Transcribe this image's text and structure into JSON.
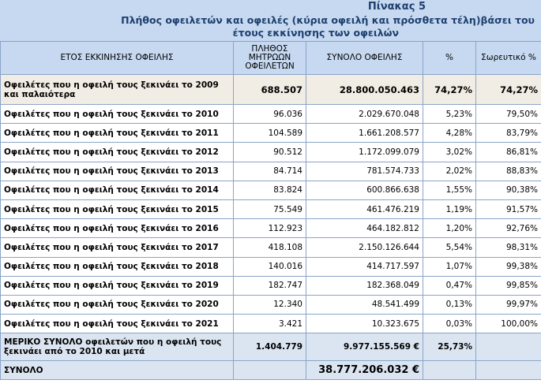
{
  "title": {
    "line1": "Πίνακας 5",
    "line2": "Πλήθος οφειλετών και οφειλές (κύρια οφειλή και πρόσθετα τέλη)βάσει του",
    "line3": "έτους εκκίνησης των οφειλών"
  },
  "headers": {
    "year": "ΕΤΟΣ ΕΚΚΙΝΗΣΗΣ ΟΦΕΙΛΗΣ",
    "count": "ΠΛΗΘΟΣ ΜΗΤΡΩΩΝ ΟΦΕΙΛΕΤΩΝ",
    "total": "ΣΥΝΟΛΟ ΟΦΕΙΛΗΣ",
    "pct": "%",
    "cum": "Σωρευτικό %"
  },
  "first_row": {
    "label": "Οφειλέτες που η οφειλή τους ξεκινάει το 2009 και παλαιότερα",
    "count": "688.507",
    "total": "28.800.050.463",
    "pct": "74,27%",
    "cum": "74,27%"
  },
  "rows": [
    {
      "label": "Οφειλέτες που η οφειλή τους ξεκινάει το 2010",
      "count": "96.036",
      "total": "2.029.670.048",
      "pct": "5,23%",
      "cum": "79,50%"
    },
    {
      "label": "Οφειλέτες που η οφειλή τους ξεκινάει το 2011",
      "count": "104.589",
      "total": "1.661.208.577",
      "pct": "4,28%",
      "cum": "83,79%"
    },
    {
      "label": "Οφειλέτες που η οφειλή τους ξεκινάει το 2012",
      "count": "90.512",
      "total": "1.172.099.079",
      "pct": "3,02%",
      "cum": "86,81%"
    },
    {
      "label": "Οφειλέτες που η οφειλή τους ξεκινάει το 2013",
      "count": "84.714",
      "total": "781.574.733",
      "pct": "2,02%",
      "cum": "88,83%"
    },
    {
      "label": "Οφειλέτες που η οφειλή τους ξεκινάει το 2014",
      "count": "83.824",
      "total": "600.866.638",
      "pct": "1,55%",
      "cum": "90,38%"
    },
    {
      "label": "Οφειλέτες που η οφειλή τους ξεκινάει το 2015",
      "count": "75.549",
      "total": "461.476.219",
      "pct": "1,19%",
      "cum": "91,57%"
    },
    {
      "label": "Οφειλέτες που η οφειλή τους ξεκινάει το 2016",
      "count": "112.923",
      "total": "464.182.812",
      "pct": "1,20%",
      "cum": "92,76%"
    },
    {
      "label": "Οφειλέτες που η οφειλή τους ξεκινάει το 2017",
      "count": "418.108",
      "total": "2.150.126.644",
      "pct": "5,54%",
      "cum": "98,31%"
    },
    {
      "label": "Οφειλέτες που η οφειλή τους ξεκινάει το 2018",
      "count": "140.016",
      "total": "414.717.597",
      "pct": "1,07%",
      "cum": "99,38%"
    },
    {
      "label": "Οφειλέτες που η οφειλή τους ξεκινάει το 2019",
      "count": "182.747",
      "total": "182.368.049",
      "pct": "0,47%",
      "cum": "99,85%"
    },
    {
      "label": "Οφειλέτες που η οφειλή τους ξεκινάει το 2020",
      "count": "12.340",
      "total": "48.541.499",
      "pct": "0,13%",
      "cum": "99,97%"
    },
    {
      "label": "Οφειλέτες που η οφειλή τους ξεκινάει το 2021",
      "count": "3.421",
      "total": "10.323.675",
      "pct": "0,03%",
      "cum": "100,00%"
    }
  ],
  "subtotal": {
    "label": "ΜΕΡΙΚΟ ΣΥΝΟΛΟ οφειλετών που η οφειλή τους ξεκινάει από το 2010 και μετά",
    "count": "1.404.779",
    "total": "9.977.155.569 €",
    "pct": "25,73%"
  },
  "grand_total": {
    "label": "ΣΥΝΟΛΟ",
    "total": "38.777.206.032 €"
  }
}
